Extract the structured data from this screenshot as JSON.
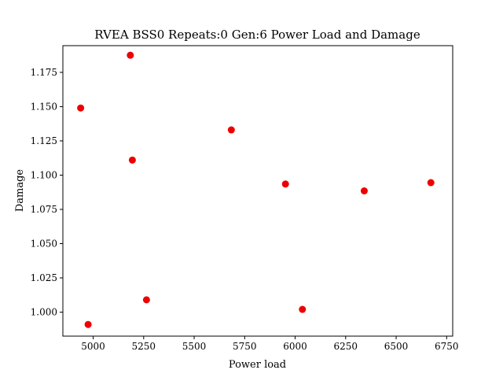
{
  "chart_data": {
    "type": "scatter",
    "title": "RVEA BSS0 Repeats:0 Gen:6 Power Load and Damage",
    "xlabel": "Power load",
    "ylabel": "Damage",
    "xlim": [
      4850,
      6780
    ],
    "ylim": [
      0.9825,
      1.1945
    ],
    "xticks": [
      5000,
      5250,
      5500,
      5750,
      6000,
      6250,
      6500,
      6750
    ],
    "xtick_labels": [
      "5000",
      "5250",
      "5500",
      "5750",
      "6000",
      "6250",
      "6500",
      "6750"
    ],
    "yticks": [
      1.0,
      1.025,
      1.05,
      1.075,
      1.1,
      1.125,
      1.15,
      1.175
    ],
    "ytick_labels": [
      "1.000",
      "1.025",
      "1.050",
      "1.075",
      "1.100",
      "1.125",
      "1.150",
      "1.175"
    ],
    "grid": false,
    "marker_color": "#ee0000",
    "points": [
      {
        "x": 4938,
        "y": 1.149
      },
      {
        "x": 4975,
        "y": 0.991
      },
      {
        "x": 5184,
        "y": 1.1875
      },
      {
        "x": 5194,
        "y": 1.111
      },
      {
        "x": 5264,
        "y": 1.009
      },
      {
        "x": 5684,
        "y": 1.133
      },
      {
        "x": 5952,
        "y": 1.0935
      },
      {
        "x": 6036,
        "y": 1.002
      },
      {
        "x": 6342,
        "y": 1.0885
      },
      {
        "x": 6672,
        "y": 1.0945
      }
    ]
  }
}
